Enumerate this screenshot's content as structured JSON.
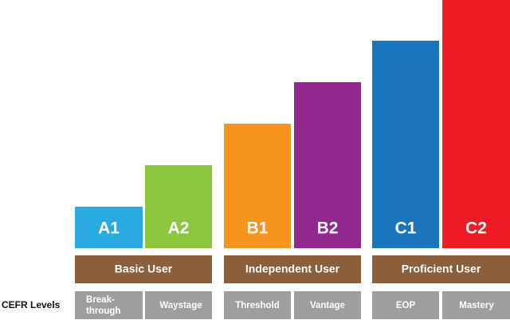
{
  "levels": [
    "A1",
    "A2",
    "B1",
    "B2",
    "C1",
    "C2"
  ],
  "groups": [
    "Basic User",
    "Independent User",
    "Proficient User"
  ],
  "descriptors": [
    [
      "Break-",
      "through"
    ],
    [
      "Waystage"
    ],
    [
      "Threshold"
    ],
    [
      "Vantage"
    ],
    [
      "EOP"
    ],
    [
      "Mastery"
    ]
  ],
  "row_label": "CEFR Levels"
}
